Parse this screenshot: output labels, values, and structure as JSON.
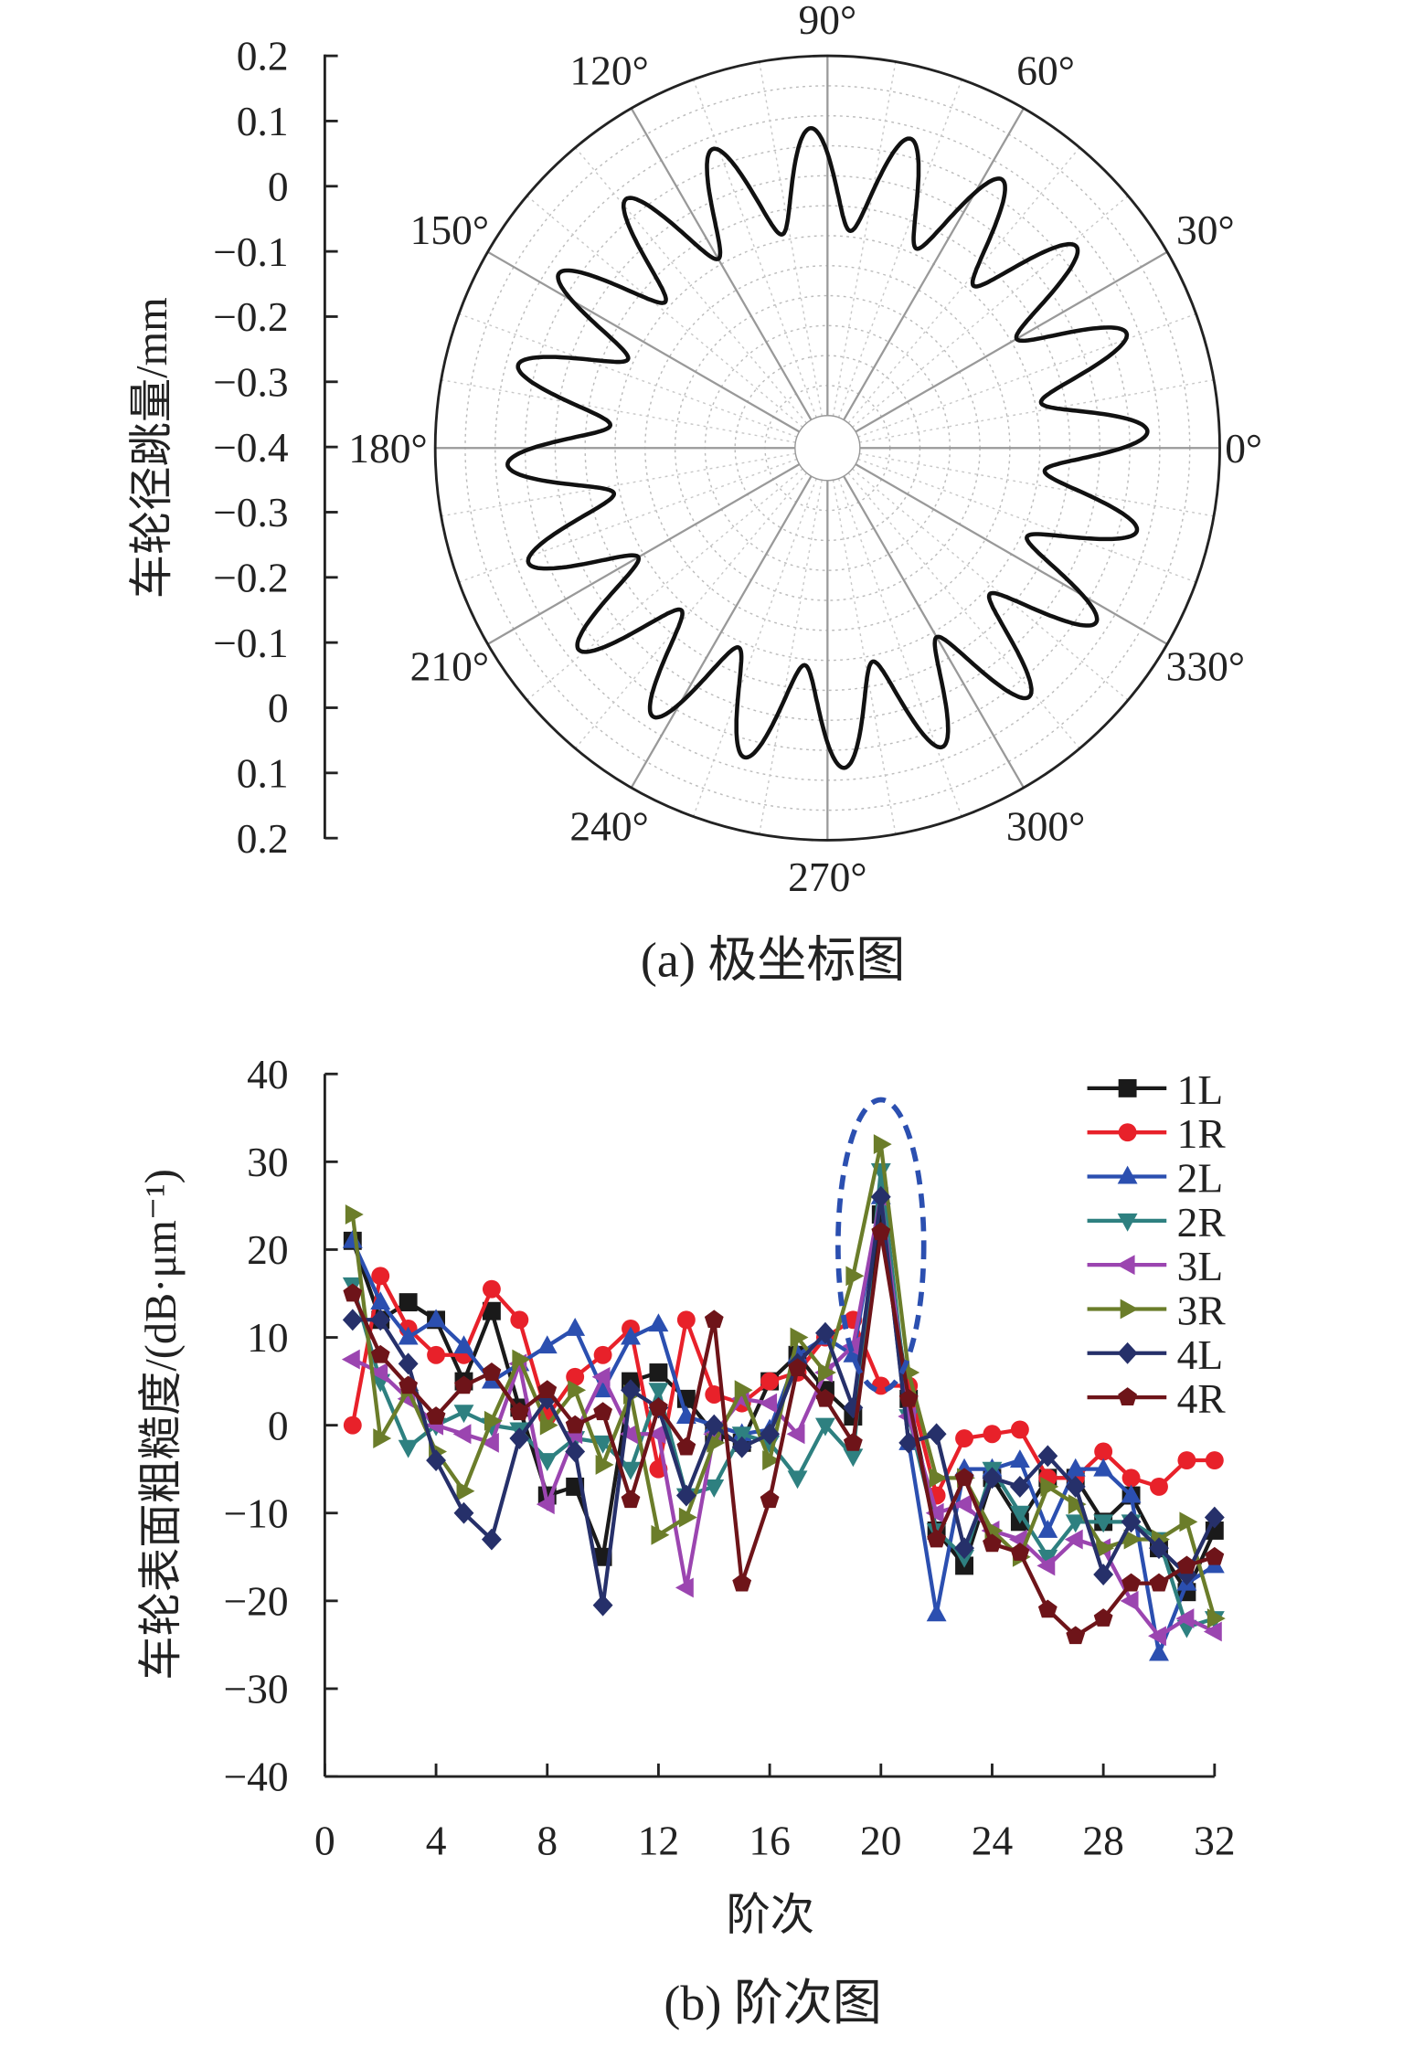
{
  "chart_data": [
    {
      "type": "polar",
      "caption": "(a) 极坐标图",
      "ylabel": "车轮径跳量/mm",
      "radial_ticks": [
        "0.2",
        "0.1",
        "0",
        "−0.1",
        "−0.2",
        "−0.3",
        "−0.4",
        "−0.3",
        "−0.2",
        "−0.1",
        "0",
        "0.1",
        "0.2"
      ],
      "radial_range": [
        -0.4,
        0.2
      ],
      "angle_labels": [
        "0°",
        "30°",
        "60°",
        "90°",
        "120°",
        "150°",
        "180°",
        "210°",
        "240°",
        "270°",
        "300°",
        "330°"
      ],
      "curve": {
        "harmonic_order": 20,
        "mean_mm": -0.005,
        "amplitude_mm": 0.085,
        "phase_deg": 3
      },
      "grid": true
    },
    {
      "type": "line",
      "caption": "(b) 阶次图",
      "xlabel": "阶次",
      "ylabel": "车轮表面粗糙度/(dB·μm⁻¹)",
      "xlim": [
        0,
        32
      ],
      "ylim": [
        -40,
        40
      ],
      "xticks": [
        "0",
        "4",
        "8",
        "12",
        "16",
        "20",
        "24",
        "28",
        "32"
      ],
      "yticks": [
        "40",
        "30",
        "20",
        "10",
        "0",
        "−10",
        "−20",
        "−30",
        "−40"
      ],
      "x": [
        1,
        2,
        3,
        4,
        5,
        6,
        7,
        8,
        9,
        10,
        11,
        12,
        13,
        14,
        15,
        16,
        17,
        18,
        19,
        20,
        21,
        22,
        23,
        24,
        25,
        26,
        27,
        28,
        29,
        30,
        31,
        32
      ],
      "legend_position": "top-right",
      "annotation_color": "#2b4fb0",
      "series": [
        {
          "name": "1L",
          "color": "#1a1a1a",
          "marker": "square",
          "values": [
            21,
            12,
            14,
            12,
            5,
            13,
            2,
            -8,
            -7,
            -15,
            5,
            6,
            3,
            -1,
            -2,
            5,
            8,
            4,
            1,
            24,
            3,
            -12,
            -16,
            -6,
            -11,
            -6,
            -6,
            -11,
            -8,
            -14,
            -19,
            -12
          ]
        },
        {
          "name": "1R",
          "color": "#e8212a",
          "marker": "circle",
          "values": [
            0,
            17,
            11,
            8,
            8,
            15.5,
            12,
            1,
            5.5,
            8,
            11,
            -5,
            12,
            3.5,
            2.5,
            5,
            6,
            10,
            12,
            4.5,
            4.5,
            -8,
            -1.5,
            -1,
            -0.5,
            -6,
            -6,
            -3,
            -6,
            -7,
            -4,
            -4
          ]
        },
        {
          "name": "2L",
          "color": "#2b4fb0",
          "marker": "triangle-up",
          "values": [
            21,
            14,
            10,
            12,
            9,
            5,
            7,
            9,
            11,
            4,
            10,
            11.5,
            1,
            0,
            -1,
            -0.5,
            8,
            10,
            8,
            26,
            -2,
            -21.5,
            -5,
            -5,
            -4,
            -12,
            -5,
            -5,
            -8,
            -26,
            -18,
            -16
          ]
        },
        {
          "name": "2R",
          "color": "#2e8080",
          "marker": "triangle-down",
          "values": [
            16,
            5,
            -2.5,
            0,
            1.5,
            0,
            -0.5,
            -4,
            -1.5,
            -2,
            -5,
            4,
            -8,
            -7,
            -1,
            -2,
            -6,
            0,
            -3.5,
            29,
            1,
            -12,
            -15,
            -5,
            -10,
            -15,
            -11,
            -11,
            -11,
            -13,
            -23,
            -22
          ]
        },
        {
          "name": "3L",
          "color": "#9b45b0",
          "marker": "triangle-left",
          "values": [
            7.5,
            6,
            3,
            0,
            -1,
            -2,
            7,
            -9,
            -1,
            5.5,
            -1,
            -1,
            -18.5,
            -1,
            3,
            2.5,
            -1,
            6,
            9,
            26,
            1,
            -10,
            -9,
            -12,
            -13,
            -16,
            -13,
            -14,
            -20,
            -24,
            -22,
            -23.5
          ]
        },
        {
          "name": "3R",
          "color": "#6b7d2a",
          "marker": "triangle-right",
          "values": [
            24,
            -1.5,
            4,
            -3,
            -7.5,
            0.5,
            7.5,
            0,
            4,
            -4.5,
            3.5,
            -12.5,
            -10.5,
            -2,
            4,
            -4,
            10,
            6,
            17,
            32,
            6,
            -6,
            -6,
            -12,
            -15,
            -7,
            -9,
            -14,
            -13,
            -13,
            -11,
            -22
          ]
        },
        {
          "name": "4L",
          "color": "#26306a",
          "marker": "diamond",
          "values": [
            12,
            12,
            7,
            -4,
            -10,
            -13,
            -1.5,
            3,
            -3,
            -20.5,
            4,
            2,
            -8,
            0,
            -2.5,
            -1,
            7,
            10.5,
            2,
            26,
            -2,
            -1,
            -14,
            -6,
            -7,
            -3.5,
            -7,
            -17,
            -11,
            -14,
            -17,
            -10.5
          ]
        },
        {
          "name": "4R",
          "color": "#6e1419",
          "marker": "pentagon",
          "values": [
            15,
            8,
            4.5,
            1,
            4.5,
            6,
            1.5,
            4,
            0,
            1.5,
            -8.5,
            2,
            -2.5,
            12,
            -18,
            -8.5,
            6.5,
            3,
            -2,
            22,
            3,
            -13,
            -6,
            -13.5,
            -14.5,
            -21,
            -24,
            -22,
            -18,
            -18,
            -16,
            -15
          ]
        }
      ]
    }
  ]
}
